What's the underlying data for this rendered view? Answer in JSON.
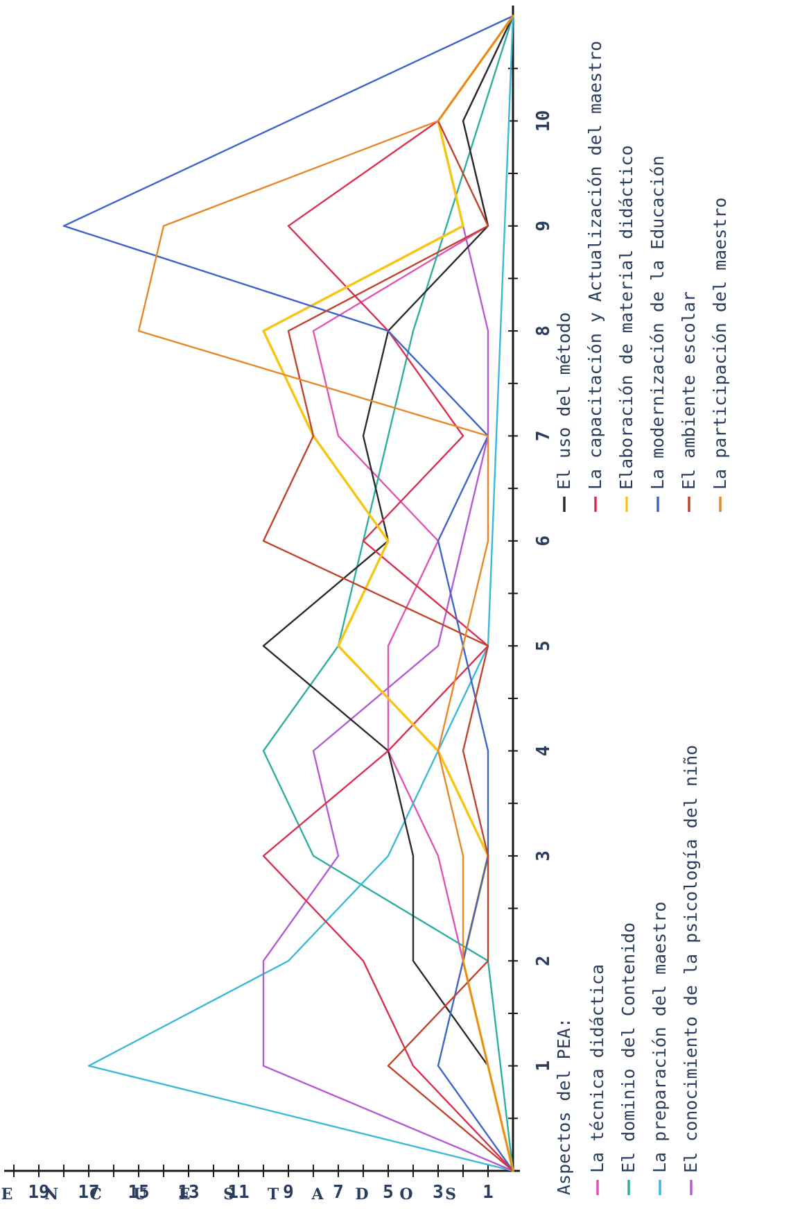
{
  "chart_data": {
    "type": "line",
    "categories": [
      "0",
      "1",
      "2",
      "3",
      "4",
      "5",
      "6",
      "7",
      "8",
      "9",
      "10",
      "11"
    ],
    "x_tick_labels": [
      "1",
      "2",
      "3",
      "4",
      "5",
      "6",
      "7",
      "8",
      "9",
      "10"
    ],
    "y_tick_labels": [
      "1",
      "3",
      "5",
      "7",
      "9",
      "11",
      "13",
      "15",
      "17",
      "19"
    ],
    "ylabel_letters": [
      "E",
      "N",
      "C",
      "U",
      "E",
      "S",
      "T",
      "A",
      "D",
      "O",
      "S"
    ],
    "xlim": [
      0,
      11
    ],
    "ylim": [
      0,
      20
    ],
    "legend_title": "Aspectos del PEA:",
    "series": [
      {
        "name": "La técnica didáctica",
        "color": "#e254b4",
        "values": [
          0,
          1,
          2,
          3,
          5,
          5,
          3,
          7,
          8,
          1,
          2,
          0
        ]
      },
      {
        "name": "El dominio del Contenido",
        "color": "#2fae9e",
        "values": [
          0,
          null,
          1,
          8,
          10,
          7,
          6,
          5,
          4,
          null,
          null,
          0
        ]
      },
      {
        "name": "La preparación del maestro",
        "color": "#3ab9d8",
        "values": [
          0,
          17,
          9,
          5,
          3,
          1,
          null,
          null,
          null,
          null,
          null,
          0
        ]
      },
      {
        "name": "El conocimiento de la psicología del niño",
        "color": "#b65ad1",
        "values": [
          0,
          10,
          10,
          7,
          8,
          3,
          2,
          1,
          1,
          2,
          3,
          0
        ]
      },
      {
        "name": "El uso del método",
        "color": "#2a2a2a",
        "values": [
          0,
          1,
          4,
          4,
          5,
          10,
          5,
          6,
          5,
          1,
          2,
          0
        ]
      },
      {
        "name": "La capacitación y Actualización del maestro",
        "color": "#d9304f",
        "values": [
          0,
          4,
          6,
          10,
          5,
          1,
          6,
          2,
          5,
          9,
          3,
          0
        ]
      },
      {
        "name": "Elaboración de material didáctico",
        "color": "#f5c518",
        "values": [
          0,
          1,
          2,
          1,
          3,
          7,
          5,
          8,
          10,
          2,
          3,
          0
        ]
      },
      {
        "name": "La modernización de la Educación",
        "color": "#3f63c9",
        "values": [
          0,
          3,
          2,
          1,
          1,
          2,
          3,
          1,
          5,
          18,
          null,
          0
        ]
      },
      {
        "name": "El ambiente escolar",
        "color": "#c0432b",
        "values": [
          0,
          5,
          1,
          1,
          2,
          1,
          10,
          8,
          9,
          1,
          3,
          0
        ]
      },
      {
        "name": "La participación del maestro",
        "color": "#e8872a",
        "values": [
          0,
          1,
          2,
          2,
          3,
          2,
          1,
          1,
          15,
          14,
          3,
          0
        ]
      }
    ]
  }
}
